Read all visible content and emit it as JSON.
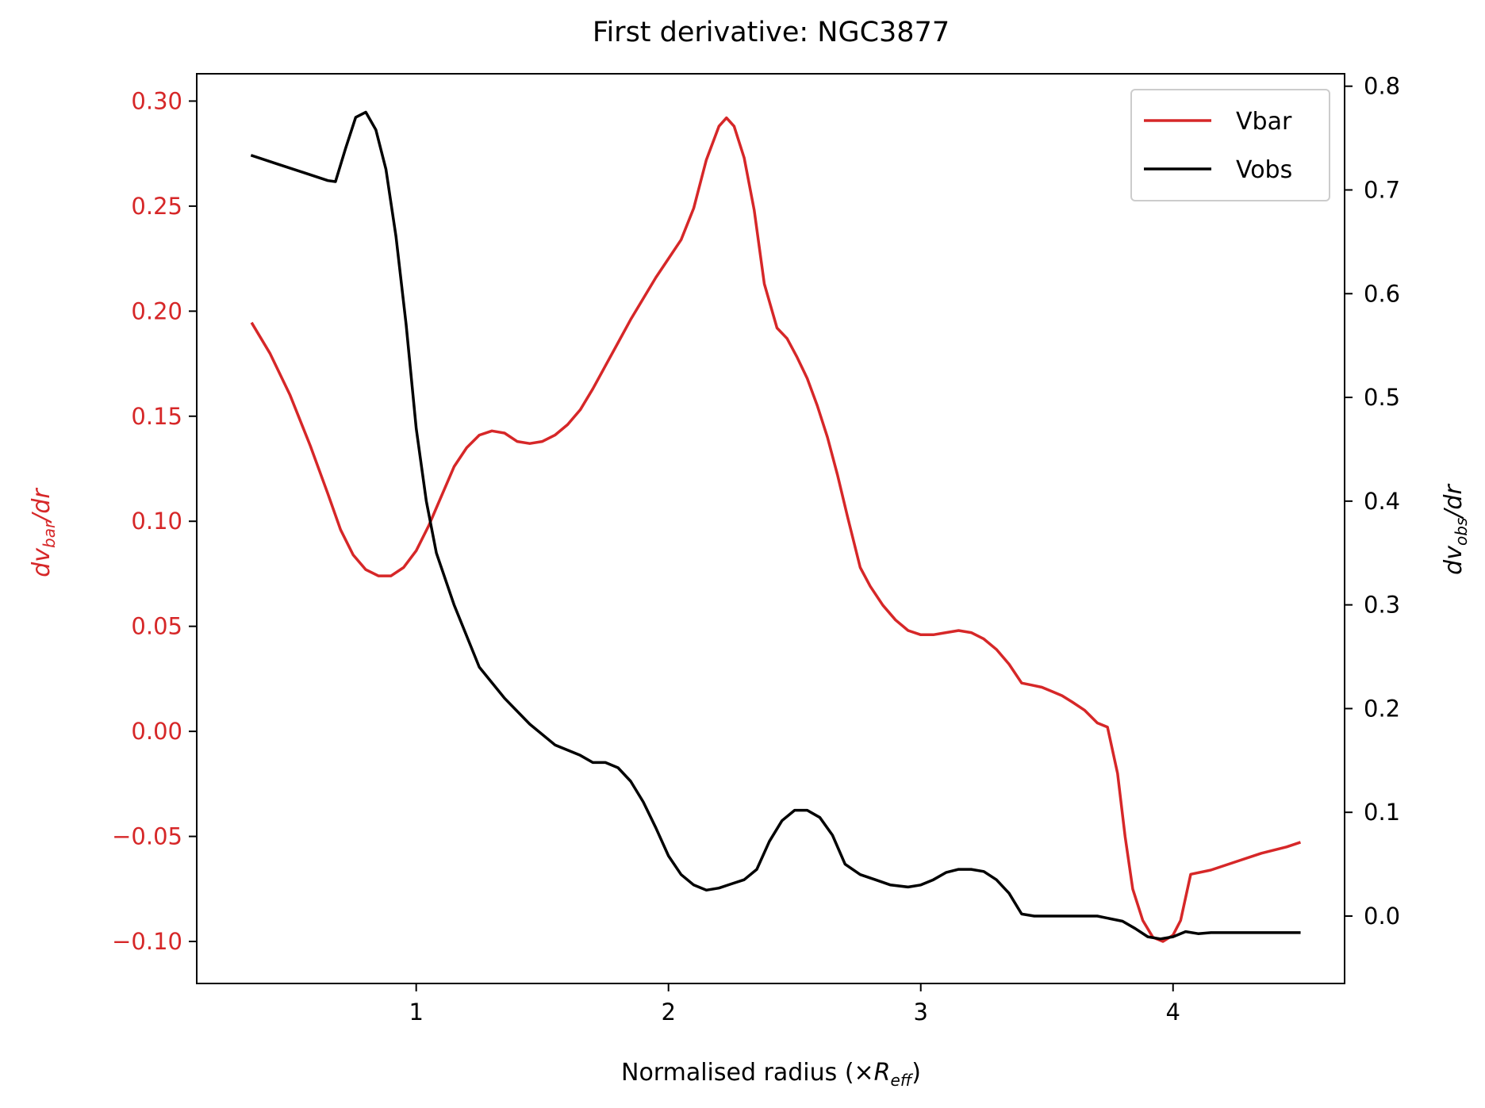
{
  "chart_data": {
    "type": "line",
    "title": "First derivative: NGC3877",
    "xlabel": {
      "prefix": "Normalised radius (×",
      "symbol": "R",
      "sub": "eff",
      "suffix": ")"
    },
    "ylabel_left": {
      "d": "dv",
      "sub": "bar",
      "suffix": "/dr",
      "color": "#d62728"
    },
    "ylabel_right": {
      "d": "dv",
      "sub": "obs",
      "suffix": "/dr",
      "color": "#000000"
    },
    "xlim": [
      0.13,
      4.68
    ],
    "ylim_left": [
      -0.12,
      0.313
    ],
    "ylim_right": [
      -0.065,
      0.812
    ],
    "x_ticks": [
      1,
      2,
      3,
      4
    ],
    "x_tick_labels": [
      "1",
      "2",
      "3",
      "4"
    ],
    "y_left_ticks": [
      -0.1,
      -0.05,
      0.0,
      0.05,
      0.1,
      0.15,
      0.2,
      0.25,
      0.3
    ],
    "y_left_tick_labels": [
      "−0.10",
      "−0.05",
      "0.00",
      "0.05",
      "0.10",
      "0.15",
      "0.20",
      "0.25",
      "0.30"
    ],
    "y_right_ticks": [
      0.0,
      0.1,
      0.2,
      0.3,
      0.4,
      0.5,
      0.6,
      0.7,
      0.8
    ],
    "y_right_tick_labels": [
      "0.0",
      "0.1",
      "0.2",
      "0.3",
      "0.4",
      "0.5",
      "0.6",
      "0.7",
      "0.8"
    ],
    "legend": {
      "position": "upper-right",
      "entries": [
        "Vbar",
        "Vobs"
      ]
    },
    "grid": false,
    "series": [
      {
        "name": "Vbar",
        "axis": "left",
        "color": "#d62728",
        "x": [
          0.35,
          0.42,
          0.5,
          0.58,
          0.65,
          0.7,
          0.75,
          0.8,
          0.85,
          0.9,
          0.95,
          1.0,
          1.05,
          1.1,
          1.15,
          1.2,
          1.25,
          1.3,
          1.35,
          1.4,
          1.45,
          1.5,
          1.55,
          1.6,
          1.65,
          1.7,
          1.75,
          1.8,
          1.85,
          1.9,
          1.95,
          2.0,
          2.05,
          2.1,
          2.15,
          2.2,
          2.23,
          2.26,
          2.3,
          2.34,
          2.38,
          2.43,
          2.47,
          2.51,
          2.55,
          2.59,
          2.63,
          2.67,
          2.71,
          2.76,
          2.8,
          2.85,
          2.9,
          2.95,
          3.0,
          3.05,
          3.1,
          3.15,
          3.2,
          3.25,
          3.3,
          3.35,
          3.4,
          3.44,
          3.48,
          3.52,
          3.56,
          3.6,
          3.65,
          3.7,
          3.74,
          3.78,
          3.81,
          3.84,
          3.88,
          3.92,
          3.96,
          4.0,
          4.03,
          4.07,
          4.15,
          4.25,
          4.35,
          4.45,
          4.5
        ],
        "y": [
          0.194,
          0.18,
          0.16,
          0.136,
          0.113,
          0.096,
          0.084,
          0.077,
          0.074,
          0.074,
          0.078,
          0.086,
          0.098,
          0.112,
          0.126,
          0.135,
          0.141,
          0.143,
          0.142,
          0.138,
          0.137,
          0.138,
          0.141,
          0.146,
          0.153,
          0.163,
          0.174,
          0.185,
          0.196,
          0.206,
          0.216,
          0.225,
          0.234,
          0.249,
          0.272,
          0.288,
          0.292,
          0.288,
          0.273,
          0.248,
          0.213,
          0.192,
          0.187,
          0.178,
          0.168,
          0.155,
          0.14,
          0.122,
          0.102,
          0.078,
          0.069,
          0.06,
          0.053,
          0.048,
          0.046,
          0.046,
          0.047,
          0.048,
          0.047,
          0.044,
          0.039,
          0.032,
          0.023,
          0.022,
          0.021,
          0.019,
          0.017,
          0.014,
          0.01,
          0.004,
          0.002,
          -0.02,
          -0.05,
          -0.075,
          -0.09,
          -0.098,
          -0.1,
          -0.097,
          -0.09,
          -0.068,
          -0.066,
          -0.062,
          -0.058,
          -0.055,
          -0.053
        ]
      },
      {
        "name": "Vobs",
        "axis": "right",
        "color": "#000000",
        "x": [
          0.35,
          0.45,
          0.55,
          0.65,
          0.68,
          0.72,
          0.76,
          0.8,
          0.84,
          0.88,
          0.92,
          0.96,
          1.0,
          1.04,
          1.08,
          1.15,
          1.25,
          1.35,
          1.45,
          1.55,
          1.65,
          1.7,
          1.75,
          1.8,
          1.85,
          1.9,
          1.95,
          2.0,
          2.05,
          2.1,
          2.15,
          2.2,
          2.25,
          2.3,
          2.35,
          2.4,
          2.45,
          2.5,
          2.55,
          2.6,
          2.65,
          2.7,
          2.76,
          2.82,
          2.88,
          2.95,
          3.0,
          3.05,
          3.1,
          3.15,
          3.2,
          3.25,
          3.3,
          3.35,
          3.4,
          3.45,
          3.5,
          3.6,
          3.7,
          3.8,
          3.85,
          3.9,
          3.95,
          4.0,
          4.05,
          4.1,
          4.15,
          4.25,
          4.35,
          4.5
        ],
        "y": [
          0.733,
          0.725,
          0.717,
          0.709,
          0.708,
          0.74,
          0.77,
          0.775,
          0.758,
          0.72,
          0.655,
          0.57,
          0.47,
          0.4,
          0.35,
          0.3,
          0.24,
          0.21,
          0.185,
          0.165,
          0.155,
          0.148,
          0.148,
          0.143,
          0.13,
          0.11,
          0.085,
          0.058,
          0.04,
          0.03,
          0.025,
          0.027,
          0.031,
          0.035,
          0.045,
          0.072,
          0.092,
          0.102,
          0.102,
          0.095,
          0.078,
          0.05,
          0.04,
          0.035,
          0.03,
          0.028,
          0.03,
          0.035,
          0.042,
          0.045,
          0.045,
          0.043,
          0.035,
          0.022,
          0.002,
          0.0,
          0.0,
          0.0,
          0.0,
          -0.005,
          -0.012,
          -0.02,
          -0.022,
          -0.02,
          -0.015,
          -0.017,
          -0.016,
          -0.016,
          -0.016,
          -0.016
        ]
      }
    ]
  }
}
